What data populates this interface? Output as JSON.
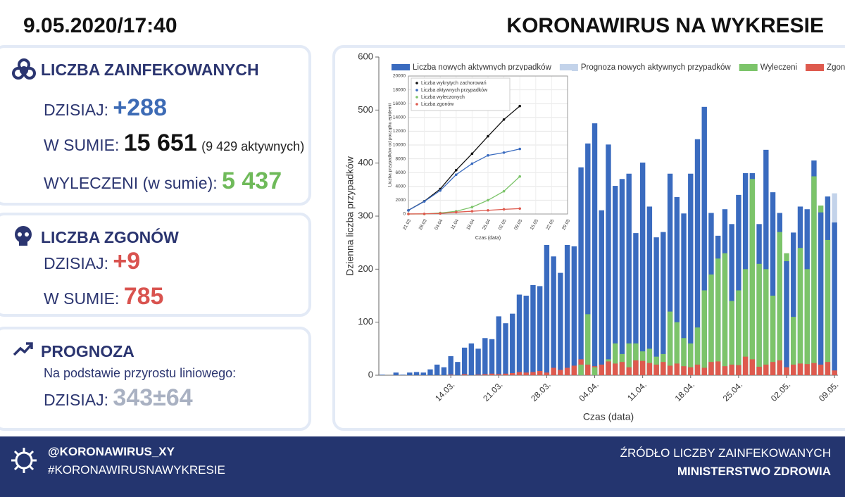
{
  "header": {
    "datetime": "9.05.2020/17:40",
    "title": "KORONAWIRUS NA WYKRESIE"
  },
  "panels": {
    "infected": {
      "title": "LICZBA ZAINFEKOWANYCH",
      "today_label": "DZISIAJ:",
      "today": "+288",
      "total_label": "W SUMIE:",
      "total": "15 651",
      "active": "(9 429 aktywnych)",
      "recovered_label": "WYLECZENI (w sumie):",
      "recovered": "5 437"
    },
    "deaths": {
      "title": "LICZBA ZGONÓW",
      "today_label": "DZISIAJ:",
      "today": "+9",
      "total_label": "W SUMIE:",
      "total": "785"
    },
    "forecast": {
      "title": "PROGNOZA",
      "note": "Na podstawie przyrostu liniowego:",
      "today_label": "DZISIAJ:",
      "today": "343±64"
    }
  },
  "footer": {
    "handle": "@KORONAWIRUS_XY",
    "hashtag": "#KORONAWIRUSNAWYKRESIE",
    "source_label": "ŹRÓDŁO LICZBY ZAINFEKOWANYCH",
    "source": "MINISTERSTWO ZDROWIA"
  },
  "chart_data": [
    {
      "type": "bar",
      "x_label": "Czas (data)",
      "y_label": "Dzienna liczba przypadków",
      "ylim": [
        0,
        600
      ],
      "yticks": [
        0,
        100,
        200,
        300,
        400,
        500,
        600
      ],
      "categories": [
        null,
        null,
        null,
        null,
        null,
        null,
        null,
        null,
        null,
        null,
        "14.03.",
        null,
        null,
        null,
        null,
        null,
        null,
        "21.03.",
        null,
        null,
        null,
        null,
        null,
        null,
        "28.03.",
        null,
        null,
        null,
        null,
        null,
        null,
        "04.04.",
        null,
        null,
        null,
        null,
        null,
        null,
        "11.04.",
        null,
        null,
        null,
        null,
        null,
        null,
        "18.04.",
        null,
        null,
        null,
        null,
        null,
        null,
        "25.04.",
        null,
        null,
        null,
        null,
        null,
        null,
        "02.05.",
        null,
        null,
        null,
        null,
        null,
        null,
        "09.05."
      ],
      "series": [
        {
          "name": "Liczba nowych aktywnych przypadków",
          "color": "#3a6bbf",
          "values": [
            1,
            0,
            5,
            1,
            5,
            6,
            5,
            11,
            20,
            15,
            36,
            25,
            52,
            60,
            50,
            70,
            68,
            111,
            98,
            116,
            152,
            150,
            170,
            168,
            249,
            224,
            193,
            256,
            243,
            392,
            437,
            475,
            311,
            435,
            357,
            370,
            380,
            268,
            401,
            318,
            260,
            270,
            380,
            336,
            305,
            380,
            445,
            506,
            306,
            263,
            313,
            285,
            340,
            381,
            381,
            285,
            425,
            345,
            306,
            215,
            269,
            318,
            313,
            405,
            307,
            337,
            288
          ]
        },
        {
          "name": "Prognoza nowych aktywnych przypadków",
          "color": "#c3d3ea",
          "values": [
            null,
            null,
            null,
            null,
            null,
            null,
            null,
            null,
            null,
            null,
            null,
            null,
            null,
            null,
            null,
            null,
            null,
            null,
            null,
            null,
            null,
            null,
            null,
            null,
            null,
            null,
            null,
            null,
            null,
            null,
            null,
            null,
            null,
            null,
            null,
            null,
            null,
            null,
            null,
            null,
            null,
            null,
            null,
            null,
            null,
            null,
            null,
            null,
            null,
            null,
            null,
            null,
            null,
            null,
            null,
            null,
            null,
            null,
            null,
            null,
            null,
            null,
            null,
            null,
            null,
            null,
            343
          ]
        },
        {
          "name": "Wyleczeni",
          "color": "#7cc46a",
          "values": [
            null,
            null,
            null,
            null,
            null,
            null,
            null,
            null,
            null,
            null,
            null,
            null,
            null,
            null,
            null,
            null,
            null,
            null,
            null,
            null,
            null,
            null,
            null,
            null,
            null,
            null,
            null,
            null,
            null,
            20,
            115,
            15,
            20,
            30,
            60,
            40,
            60,
            60,
            45,
            50,
            35,
            40,
            120,
            100,
            70,
            60,
            90,
            160,
            190,
            220,
            230,
            140,
            160,
            200,
            370,
            210,
            200,
            150,
            270,
            230,
            110,
            240,
            200,
            375,
            320,
            255,
            null
          ]
        },
        {
          "name": "Zgony",
          "color": "#de5a4e",
          "values": [
            null,
            null,
            null,
            null,
            null,
            null,
            null,
            null,
            null,
            null,
            1,
            0,
            2,
            0,
            1,
            2,
            3,
            2,
            3,
            4,
            6,
            5,
            6,
            8,
            5,
            14,
            10,
            14,
            18,
            30,
            20,
            17,
            20,
            26,
            22,
            25,
            15,
            28,
            27,
            23,
            20,
            25,
            18,
            22,
            17,
            15,
            20,
            14,
            25,
            26,
            17,
            20,
            19,
            35,
            30,
            16,
            20,
            25,
            28,
            15,
            20,
            22,
            21,
            23,
            20,
            25,
            9
          ]
        }
      ]
    },
    {
      "type": "line",
      "x_label": "Czas (data)",
      "y_label": "Liczba przypadków od początku epidemii",
      "ylim": [
        0,
        20000
      ],
      "yticks": [
        0,
        2000,
        4000,
        6000,
        8000,
        10000,
        12000,
        14000,
        16000,
        18000,
        20000
      ],
      "grid": true,
      "categories": [
        "21.03",
        "28.03",
        "04.04",
        "11.04",
        "18.04",
        "25.04",
        "02.05",
        "09.05",
        "15.05",
        "22.05",
        "29.05"
      ],
      "series": [
        {
          "name": "Liczba wykrytych zachorowań",
          "color": "#111111",
          "values": [
            536,
            1862,
            3627,
            6356,
            8742,
            11273,
            13693,
            15651,
            null,
            null,
            null
          ]
        },
        {
          "name": "Liczba aktywnych przypadków",
          "color": "#3a6bbf",
          "values": [
            527,
            1820,
            3400,
            5700,
            7300,
            8500,
            8900,
            9429,
            null,
            null,
            null
          ]
        },
        {
          "name": "Liczba wyleczonych",
          "color": "#7cc46a",
          "values": [
            0,
            7,
            150,
            400,
            1000,
            2000,
            3300,
            5437,
            null,
            null,
            null
          ]
        },
        {
          "name": "Liczba zgonów",
          "color": "#de5a4e",
          "values": [
            5,
            22,
            79,
            263,
            403,
            535,
            678,
            785,
            null,
            null,
            null
          ]
        }
      ]
    }
  ]
}
